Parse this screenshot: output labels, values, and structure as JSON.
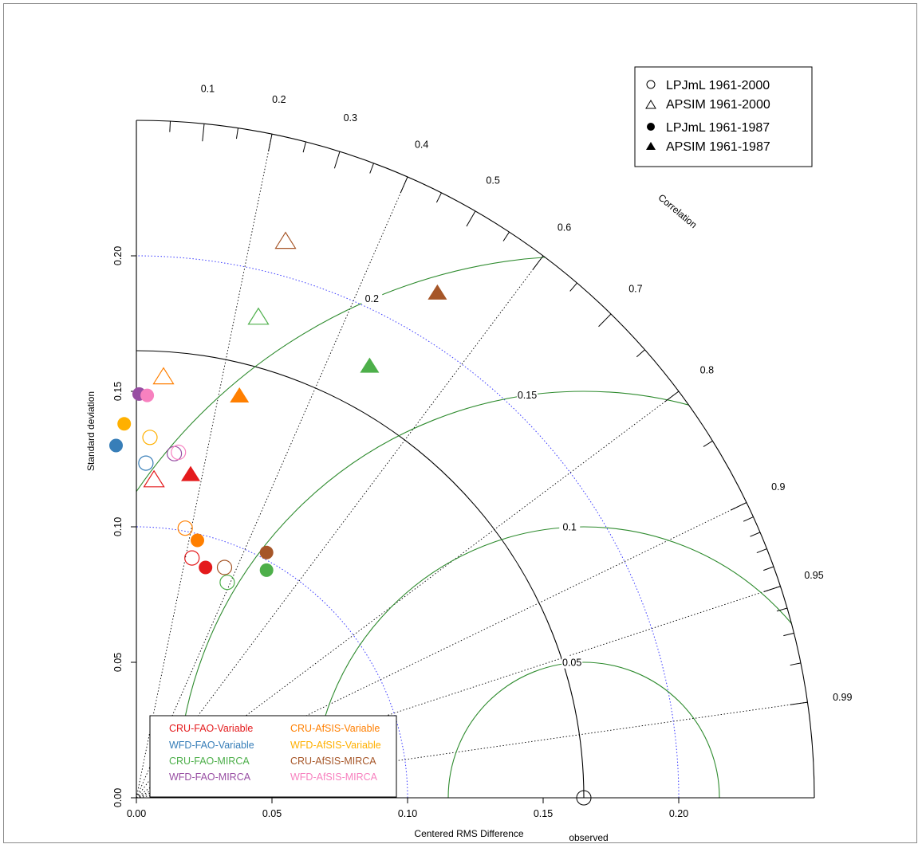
{
  "chart_data": {
    "type": "scatter",
    "subtype": "taylor-diagram",
    "xlabel": "Centered RMS Difference",
    "ylabel": "Standard deviation",
    "correlation_label": "Correlation",
    "observed_label": "observed",
    "observed_sd": 0.165,
    "max_sd": 0.25,
    "x_ticks": [
      "0.00",
      "0.05",
      "0.10",
      "0.15",
      "0.20"
    ],
    "y_ticks": [
      "0.00",
      "0.05",
      "0.10",
      "0.15",
      "0.20"
    ],
    "correlation_ticks": [
      "0.1",
      "0.2",
      "0.3",
      "0.4",
      "0.5",
      "0.6",
      "0.7",
      "0.8",
      "0.9",
      "0.95",
      "0.99"
    ],
    "rms_contours": [
      "0.05",
      "0.1",
      "0.15",
      "0.2"
    ],
    "colors": {
      "rms_contour": "#2e8b2e",
      "sd_circle": "#3a3aff",
      "axis": "#000000",
      "radial": "#000000"
    },
    "symbol_legend": [
      {
        "label": "LPJmL 1961-2000",
        "shape": "circle-open"
      },
      {
        "label": "APSIM 1961-2000",
        "shape": "triangle-open"
      },
      {
        "label": "LPJmL 1961-1987",
        "shape": "circle-filled"
      },
      {
        "label": "APSIM 1961-1987",
        "shape": "triangle-filled"
      }
    ],
    "category_legend": [
      {
        "label": "CRU-FAO-Variable",
        "color": "#e41a1c"
      },
      {
        "label": "WFD-FAO-Variable",
        "color": "#377eb8"
      },
      {
        "label": "CRU-FAO-MIRCA",
        "color": "#4daf4a"
      },
      {
        "label": "WFD-FAO-MIRCA",
        "color": "#984ea3"
      },
      {
        "label": "CRU-AfSIS-Variable",
        "color": "#ff7f00"
      },
      {
        "label": "WFD-AfSIS-Variable",
        "color": "#ffb000"
      },
      {
        "label": "CRU-AfSIS-MIRCA",
        "color": "#a65628"
      },
      {
        "label": "WFD-AfSIS-MIRCA",
        "color": "#f781bf"
      }
    ],
    "points": [
      {
        "x": 0.0065,
        "y": 0.117,
        "shape": "triangle-open",
        "color": "#e41a1c"
      },
      {
        "x": 0.01,
        "y": 0.155,
        "shape": "triangle-open",
        "color": "#ff7f00"
      },
      {
        "x": 0.045,
        "y": 0.177,
        "shape": "triangle-open",
        "color": "#4daf4a"
      },
      {
        "x": 0.055,
        "y": 0.205,
        "shape": "triangle-open",
        "color": "#a65628"
      },
      {
        "x": 0.02,
        "y": 0.119,
        "shape": "triangle-filled",
        "color": "#e41a1c"
      },
      {
        "x": 0.038,
        "y": 0.148,
        "shape": "triangle-filled",
        "color": "#ff7f00"
      },
      {
        "x": 0.086,
        "y": 0.159,
        "shape": "triangle-filled",
        "color": "#4daf4a"
      },
      {
        "x": 0.111,
        "y": 0.186,
        "shape": "triangle-filled",
        "color": "#a65628"
      },
      {
        "x": 0.0035,
        "y": 0.1235,
        "shape": "circle-open",
        "color": "#377eb8"
      },
      {
        "x": 0.005,
        "y": 0.133,
        "shape": "circle-open",
        "color": "#ffb000"
      },
      {
        "x": 0.014,
        "y": 0.127,
        "shape": "circle-open",
        "color": "#984ea3"
      },
      {
        "x": 0.0155,
        "y": 0.1275,
        "shape": "circle-open",
        "color": "#f781bf"
      },
      {
        "x": 0.018,
        "y": 0.0995,
        "shape": "circle-open",
        "color": "#ff7f00"
      },
      {
        "x": 0.0205,
        "y": 0.0885,
        "shape": "circle-open",
        "color": "#e41a1c"
      },
      {
        "x": 0.0325,
        "y": 0.085,
        "shape": "circle-open",
        "color": "#a65628"
      },
      {
        "x": 0.0335,
        "y": 0.0795,
        "shape": "circle-open",
        "color": "#4daf4a"
      },
      {
        "x": -0.0075,
        "y": 0.13,
        "shape": "circle-filled",
        "color": "#377eb8"
      },
      {
        "x": -0.0045,
        "y": 0.138,
        "shape": "circle-filled",
        "color": "#ffb000"
      },
      {
        "x": 0.001,
        "y": 0.149,
        "shape": "circle-filled",
        "color": "#984ea3"
      },
      {
        "x": 0.004,
        "y": 0.1485,
        "shape": "circle-filled",
        "color": "#f781bf"
      },
      {
        "x": 0.0225,
        "y": 0.095,
        "shape": "circle-filled",
        "color": "#ff7f00"
      },
      {
        "x": 0.0255,
        "y": 0.085,
        "shape": "circle-filled",
        "color": "#e41a1c"
      },
      {
        "x": 0.048,
        "y": 0.0905,
        "shape": "circle-filled",
        "color": "#a65628"
      },
      {
        "x": 0.048,
        "y": 0.084,
        "shape": "circle-filled",
        "color": "#4daf4a"
      }
    ]
  }
}
